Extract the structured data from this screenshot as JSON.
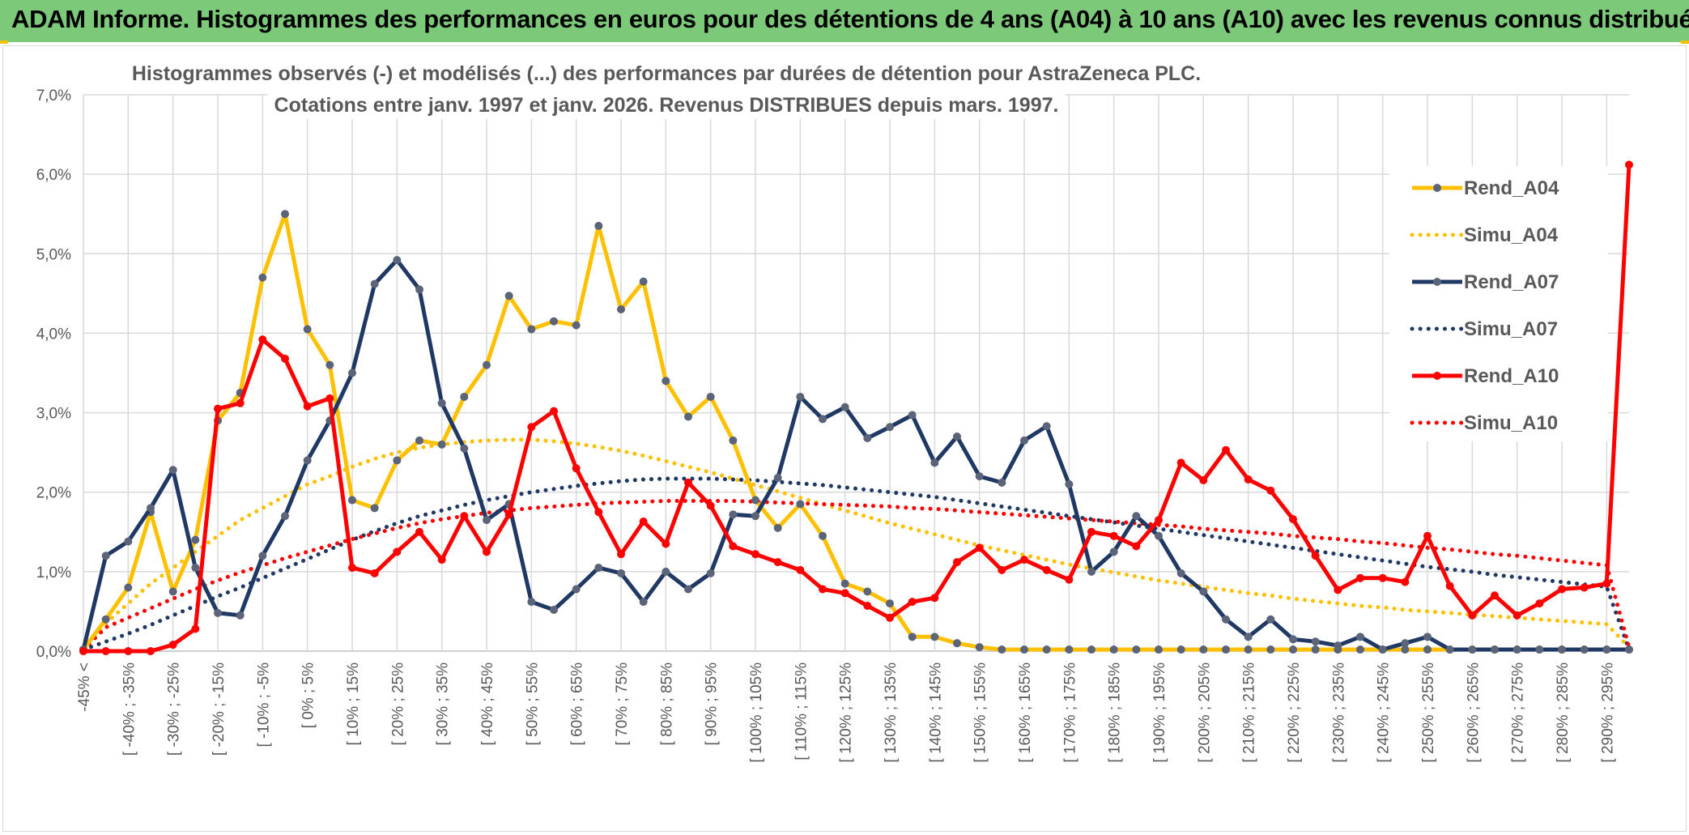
{
  "banner": {
    "title": "ADAM Informe. Histogrammes des performances en euros pour des détentions de 4 ans (A04) à 10 ans (A10) avec les revenus connus distribués"
  },
  "chart_data": {
    "type": "line",
    "title_lines": [
      "Histogrammes observés (-) et modélisés (...) des performances par durées de détention pour AstraZeneca PLC.",
      "Cotations entre janv. 1997 et janv. 2026. Revenus DISTRIBUES depuis mars. 1997."
    ],
    "y_ticks": [
      "0,0%",
      "1,0%",
      "2,0%",
      "3,0%",
      "4,0%",
      "5,0%",
      "6,0%",
      "7,0%"
    ],
    "ylim": [
      0,
      7
    ],
    "grid": true,
    "legend_position": "right",
    "x_labels": [
      "-45% <",
      "[ -40% ; -35%",
      "[ -30% ; -25%",
      "[ -20% ; -15%",
      "[ -10% ; -5%",
      "[ 0% ; 5%",
      "[ 10% ; 15%",
      "[ 20% ; 25%",
      "[ 30% ; 35%",
      "[ 40% ; 45%",
      "[ 50% ; 55%",
      "[ 60% ; 65%",
      "[ 70% ; 75%",
      "[ 80% ; 85%",
      "[ 90% ; 95%",
      "[ 100% ; 105%",
      "[ 110% ; 115%",
      "[ 120% ; 125%",
      "[ 130% ; 135%",
      "[ 140% ; 145%",
      "[ 150% ; 155%",
      "[ 160% ; 165%",
      "[ 170% ; 175%",
      "[ 180% ; 185%",
      "[ 190% ; 195%",
      "[ 200% ; 205%",
      "[ 210% ; 215%",
      "[ 220% ; 225%",
      "[ 230% ; 235%",
      "[ 240% ; 245%",
      "[ 250% ; 255%",
      "[ 260% ; 265%",
      "[ 270% ; 275%",
      "[ 280% ; 285%",
      "[ 290% ; 295%"
    ],
    "n_points": 70,
    "series": [
      {
        "name": "Rend_A04",
        "style": "solid",
        "color": "#ffc000",
        "values": [
          0.02,
          0.4,
          0.8,
          1.75,
          0.75,
          1.4,
          2.9,
          3.25,
          4.7,
          5.5,
          4.05,
          3.6,
          1.9,
          1.8,
          2.4,
          2.65,
          2.6,
          3.2,
          3.6,
          4.47,
          4.05,
          4.15,
          4.1,
          5.35,
          4.3,
          4.65,
          3.4,
          2.95,
          3.2,
          2.65,
          1.9,
          1.55,
          1.85,
          1.45,
          0.85,
          0.75,
          0.6,
          0.18,
          0.18,
          0.1,
          0.05,
          0.02,
          0.02,
          0.02,
          0.02,
          0.02,
          0.02,
          0.02,
          0.02,
          0.02,
          0.02,
          0.02,
          0.02,
          0.02,
          0.02,
          0.02,
          0.02,
          0.02,
          0.02,
          0.02,
          0.02,
          0.02,
          0.02,
          0.02,
          0.02,
          0.02,
          0.02,
          0.02,
          0.02,
          0.02
        ]
      },
      {
        "name": "Simu_A04",
        "style": "dotted",
        "color": "#ffc000",
        "values": [
          0.05,
          0.35,
          0.6,
          0.85,
          1.05,
          1.25,
          1.45,
          1.65,
          1.8,
          1.95,
          2.1,
          2.2,
          2.32,
          2.42,
          2.5,
          2.56,
          2.6,
          2.63,
          2.65,
          2.66,
          2.66,
          2.64,
          2.61,
          2.57,
          2.52,
          2.46,
          2.39,
          2.32,
          2.25,
          2.17,
          2.09,
          2.01,
          1.93,
          1.85,
          1.77,
          1.69,
          1.61,
          1.54,
          1.47,
          1.4,
          1.33,
          1.27,
          1.21,
          1.15,
          1.09,
          1.04,
          0.99,
          0.94,
          0.89,
          0.85,
          0.81,
          0.77,
          0.73,
          0.7,
          0.66,
          0.63,
          0.6,
          0.57,
          0.55,
          0.52,
          0.5,
          0.48,
          0.46,
          0.44,
          0.42,
          0.4,
          0.38,
          0.36,
          0.34,
          0.05
        ]
      },
      {
        "name": "Rend_A07",
        "style": "solid",
        "color": "#1f3864",
        "values": [
          0.02,
          1.2,
          1.38,
          1.8,
          2.28,
          1.05,
          0.48,
          0.45,
          1.2,
          1.7,
          2.4,
          2.9,
          3.5,
          4.62,
          4.92,
          4.55,
          3.12,
          2.55,
          1.65,
          1.85,
          0.62,
          0.52,
          0.78,
          1.05,
          0.98,
          0.62,
          1.0,
          0.78,
          0.98,
          1.72,
          1.7,
          2.18,
          3.2,
          2.92,
          3.07,
          2.68,
          2.82,
          2.97,
          2.37,
          2.7,
          2.2,
          2.12,
          2.65,
          2.83,
          2.1,
          1.0,
          1.25,
          1.7,
          1.45,
          0.98,
          0.75,
          0.4,
          0.18,
          0.4,
          0.15,
          0.12,
          0.07,
          0.18,
          0.02,
          0.1,
          0.18,
          0.02,
          0.02,
          0.02,
          0.02,
          0.02,
          0.02,
          0.02,
          0.02,
          0.02
        ]
      },
      {
        "name": "Simu_A07",
        "style": "dotted",
        "color": "#1f3864",
        "values": [
          0.02,
          0.12,
          0.22,
          0.33,
          0.45,
          0.57,
          0.69,
          0.8,
          0.92,
          1.04,
          1.16,
          1.28,
          1.4,
          1.51,
          1.61,
          1.7,
          1.77,
          1.84,
          1.9,
          1.95,
          2.0,
          2.04,
          2.08,
          2.11,
          2.14,
          2.16,
          2.17,
          2.17,
          2.17,
          2.16,
          2.15,
          2.13,
          2.11,
          2.09,
          2.06,
          2.03,
          2.0,
          1.97,
          1.94,
          1.9,
          1.86,
          1.82,
          1.78,
          1.74,
          1.7,
          1.66,
          1.62,
          1.58,
          1.54,
          1.5,
          1.46,
          1.42,
          1.38,
          1.34,
          1.3,
          1.26,
          1.22,
          1.18,
          1.14,
          1.1,
          1.06,
          1.03,
          1.0,
          0.96,
          0.93,
          0.9,
          0.87,
          0.84,
          0.81,
          0.02
        ]
      },
      {
        "name": "Rend_A10",
        "style": "solid",
        "color": "#ff0000",
        "values": [
          0.0,
          0.0,
          0.0,
          0.0,
          0.08,
          0.28,
          3.05,
          3.12,
          3.92,
          3.68,
          3.08,
          3.18,
          1.05,
          0.98,
          1.25,
          1.5,
          1.15,
          1.7,
          1.25,
          1.72,
          2.82,
          3.02,
          2.3,
          1.75,
          1.22,
          1.63,
          1.35,
          2.12,
          1.83,
          1.32,
          1.22,
          1.12,
          1.02,
          0.78,
          0.73,
          0.57,
          0.42,
          0.62,
          0.67,
          1.12,
          1.3,
          1.02,
          1.15,
          1.02,
          0.9,
          1.5,
          1.45,
          1.32,
          1.65,
          2.37,
          2.15,
          2.53,
          2.16,
          2.02,
          1.66,
          1.2,
          0.77,
          0.92,
          0.92,
          0.87,
          1.45,
          0.82,
          0.45,
          0.7,
          0.45,
          0.6,
          0.78,
          0.8,
          0.85,
          6.12
        ]
      },
      {
        "name": "Simu_A10",
        "style": "dotted",
        "color": "#ff0000",
        "values": [
          0.02,
          0.3,
          0.42,
          0.54,
          0.66,
          0.78,
          0.89,
          0.99,
          1.08,
          1.17,
          1.25,
          1.33,
          1.41,
          1.48,
          1.55,
          1.61,
          1.66,
          1.7,
          1.74,
          1.77,
          1.8,
          1.82,
          1.84,
          1.86,
          1.87,
          1.88,
          1.89,
          1.89,
          1.89,
          1.89,
          1.88,
          1.87,
          1.86,
          1.85,
          1.84,
          1.83,
          1.82,
          1.8,
          1.79,
          1.77,
          1.75,
          1.73,
          1.71,
          1.69,
          1.67,
          1.65,
          1.63,
          1.61,
          1.59,
          1.57,
          1.54,
          1.52,
          1.5,
          1.48,
          1.45,
          1.43,
          1.41,
          1.38,
          1.36,
          1.33,
          1.3,
          1.28,
          1.25,
          1.22,
          1.2,
          1.17,
          1.14,
          1.11,
          1.08,
          0.05
        ]
      }
    ]
  }
}
